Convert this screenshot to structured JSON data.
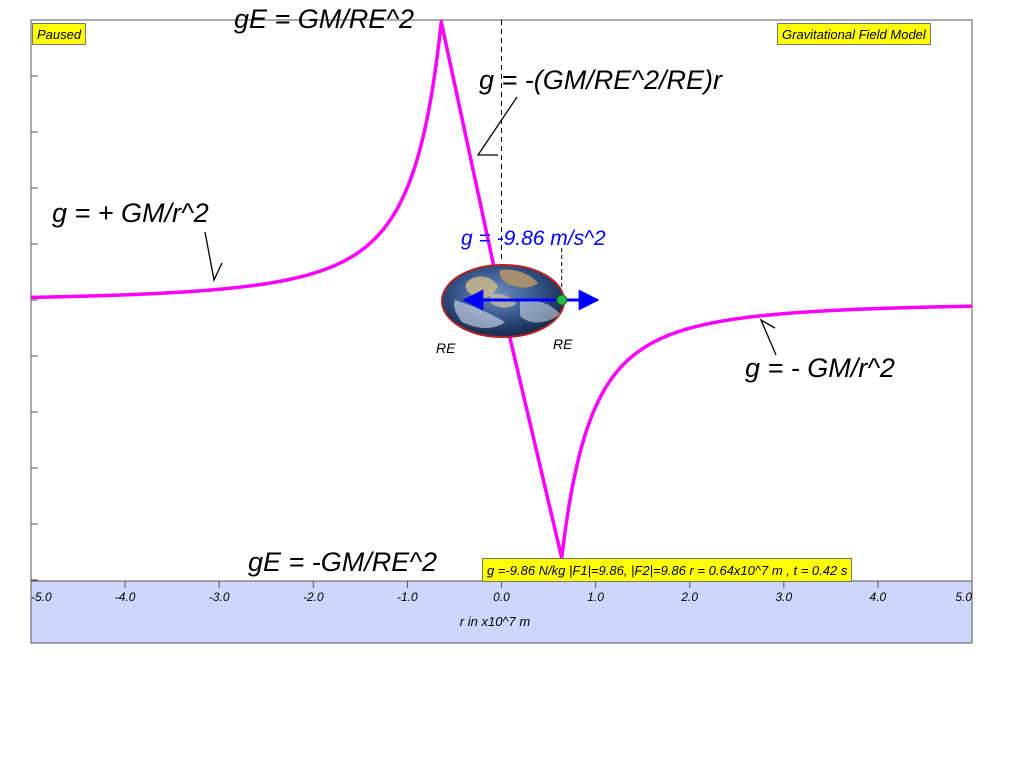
{
  "app": {
    "status": "Paused",
    "model_title": "Gravitational Field Model",
    "readout": "g =-9.86 N/kg |F1|=9.86, |F2|=9.86 r = 0.64x10^7 m , t = 0.42 s",
    "colors": {
      "curve": "#ff00ff",
      "arrow": "#0000ff",
      "badge": "#ffff00",
      "axis_panel": "#ccd7fb",
      "field_label": "#0000ff"
    }
  },
  "chart_data": {
    "type": "line",
    "title": "",
    "xlabel": "r in x10^7 m",
    "ylabel": "",
    "xlim": [
      -5.0,
      5.0
    ],
    "grid": false,
    "x_ticks": [
      -5,
      -4,
      -3,
      -2,
      -1,
      0,
      1,
      2,
      3,
      4,
      5
    ],
    "x_tick_labels": [
      "-5.0",
      "-4.0",
      "-3.0",
      "-2.0",
      "-1.0",
      "0.0",
      "1.0",
      "2.0",
      "3.0",
      "4.0",
      "5.0"
    ],
    "earth_radius": 0.64,
    "series": [
      {
        "model": "piecewise: +GM/r^2 for r < -RE; -(GM/RE^2/RE) r for |r| <= RE; -GM/r^2 for r > RE",
        "peak_value": 9.86
      }
    ],
    "annotations": {
      "top_peak": "gE = GM/RE^2",
      "inner_region": "g = -(GM/RE^2/RE)r",
      "left_region": "g = + GM/r^2",
      "right_region": "g = - GM/r^2",
      "bottom_peak": "gE = -GM/RE^2",
      "field_value": "g = -9.86 m/s^2",
      "radius_left": "RE",
      "radius_right": "RE"
    },
    "probe_r": 0.64,
    "probe_g": -9.86
  }
}
